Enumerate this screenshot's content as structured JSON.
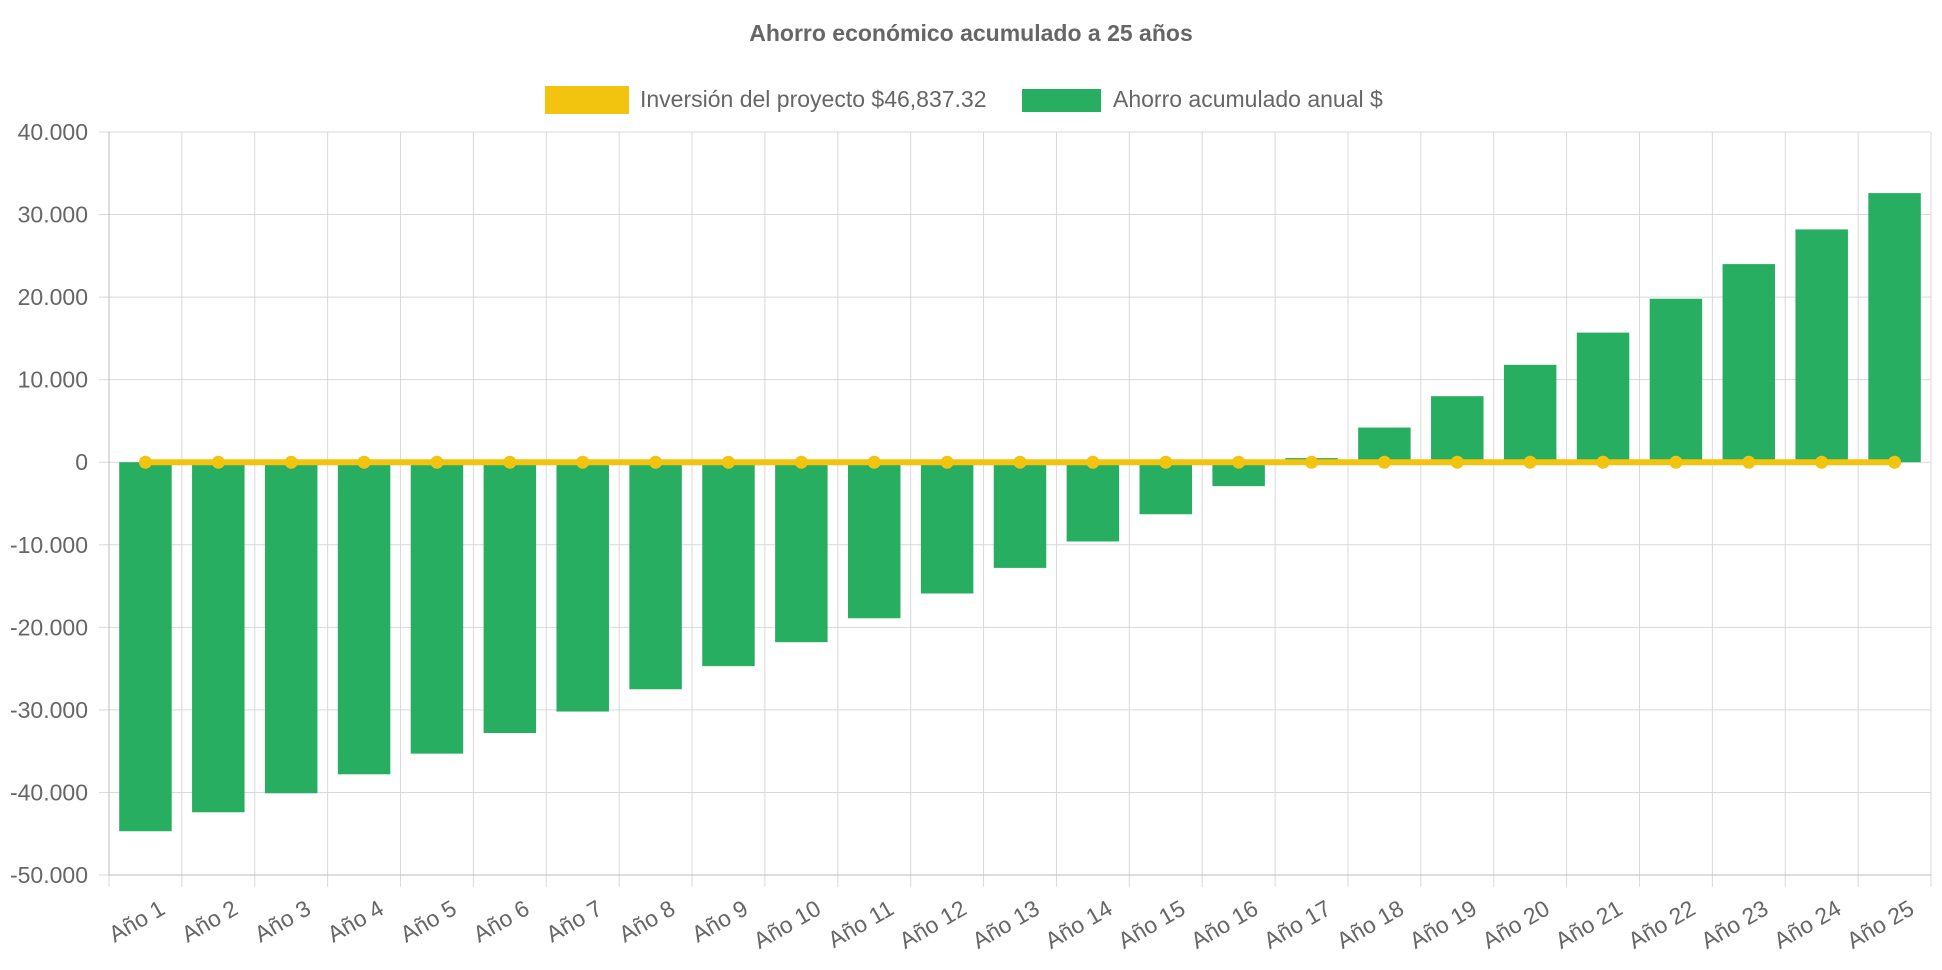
{
  "chart_data": {
    "type": "bar",
    "title": "Ahorro económico acumulado a 25 años",
    "xlabel": "",
    "ylabel": "",
    "categories": [
      "Año 1",
      "Año 2",
      "Año 3",
      "Año 4",
      "Año 5",
      "Año 6",
      "Año 7",
      "Año 8",
      "Año 9",
      "Año 10",
      "Año 11",
      "Año 12",
      "Año 13",
      "Año 14",
      "Año 15",
      "Año 16",
      "Año 17",
      "Año 18",
      "Año 19",
      "Año 20",
      "Año 21",
      "Año 22",
      "Año 23",
      "Año 24",
      "Año 25"
    ],
    "series": [
      {
        "name": "Inversión del proyecto $46,837.32",
        "type": "line",
        "color": "#f2c30f",
        "values": [
          0,
          0,
          0,
          0,
          0,
          0,
          0,
          0,
          0,
          0,
          0,
          0,
          0,
          0,
          0,
          0,
          0,
          0,
          0,
          0,
          0,
          0,
          0,
          0,
          0
        ]
      },
      {
        "name": "Ahorro acumulado anual $",
        "type": "bar",
        "color": "#27ae60",
        "values": [
          -44700,
          -42400,
          -40100,
          -37800,
          -35300,
          -32800,
          -30200,
          -27500,
          -24700,
          -21800,
          -18900,
          -15900,
          -12800,
          -9600,
          -6300,
          -2900,
          500,
          4200,
          8000,
          11800,
          15700,
          19800,
          24000,
          28200,
          32600
        ]
      }
    ],
    "ylim": [
      -50000,
      40000
    ],
    "yticks": [
      "40.000",
      "30.000",
      "20.000",
      "10.000",
      "0",
      "-10.000",
      "-20.000",
      "-30.000",
      "-40.000",
      "-50.000"
    ],
    "grid": true,
    "legend_position": "top-center"
  }
}
